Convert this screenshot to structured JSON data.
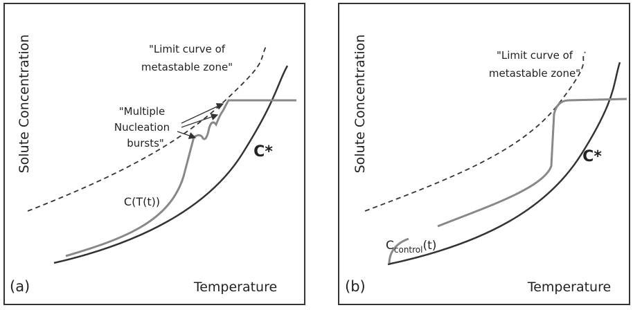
{
  "panels": [
    {
      "label": "(a)",
      "y_axis": "Solute Concentration",
      "x_axis": "Temperature",
      "limit_curve": [
        "\"Limit  curve of",
        "metastable zone\""
      ],
      "nucleation": [
        "\"Multiple",
        "Nucleation",
        "bursts\""
      ],
      "equilibrium": "C*",
      "curve_label": "C(T(t))"
    },
    {
      "label": "(b)",
      "y_axis": "Solute Concentration",
      "x_axis": "Temperature",
      "limit_curve": [
        "\"Limit  curve of",
        "metastable zone\""
      ],
      "equilibrium": "C*",
      "curve_label": {
        "base": "C",
        "subscript": "control",
        "suffix": "(t)"
      }
    }
  ]
}
